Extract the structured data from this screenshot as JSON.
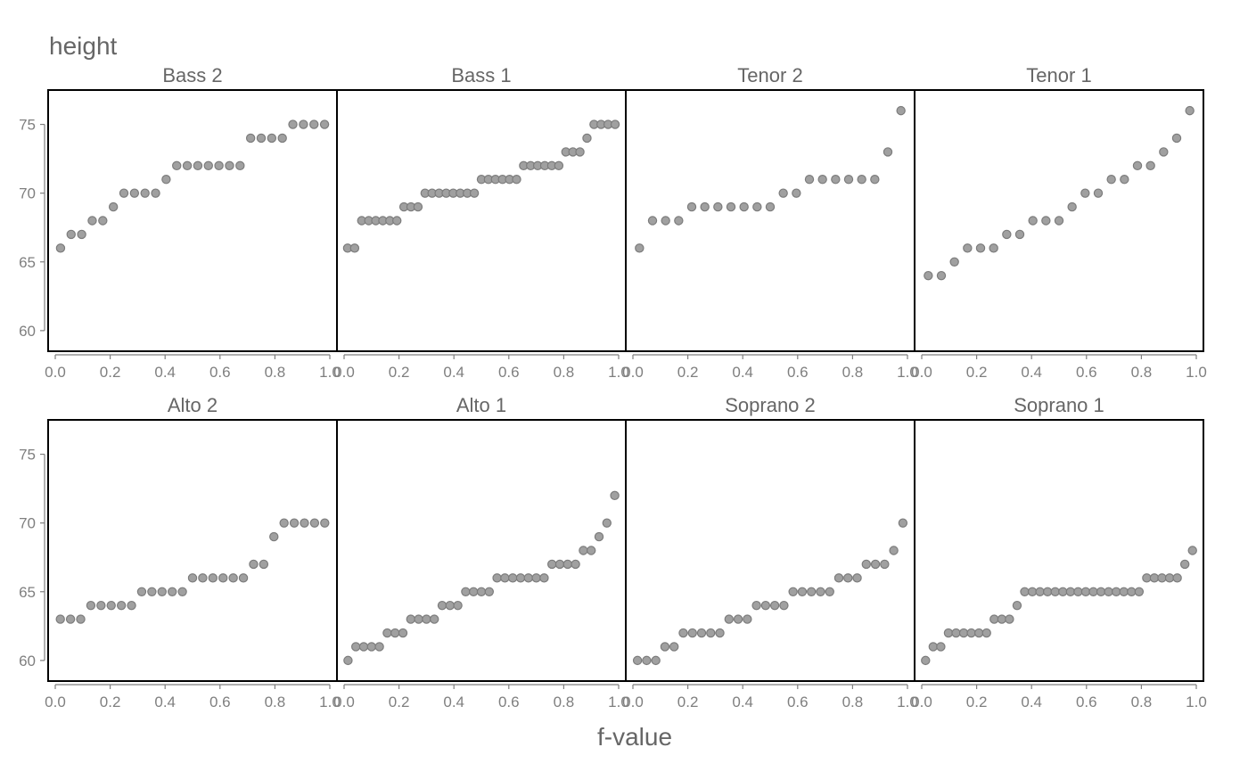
{
  "chart_data": {
    "type": "scatter",
    "ylabel": "height",
    "xlabel": "f-value",
    "xlim": [
      0,
      1
    ],
    "ylim": [
      58.5,
      77.5
    ],
    "yticks": [
      60,
      65,
      70,
      75
    ],
    "xticks": [
      0.0,
      0.2,
      0.4,
      0.6,
      0.8,
      1.0
    ],
    "xtick_labels": [
      "0.0",
      "0.2",
      "0.4",
      "0.6",
      "0.8",
      "1.0"
    ],
    "grid": false,
    "panels": [
      {
        "title": "Bass 2",
        "n": 26,
        "values": [
          66,
          67,
          67,
          68,
          68,
          69,
          70,
          70,
          70,
          70,
          71,
          72,
          72,
          72,
          72,
          72,
          72,
          72,
          74,
          74,
          74,
          74,
          75,
          75,
          75,
          75
        ]
      },
      {
        "title": "Bass 1",
        "n": 39,
        "values": [
          66,
          66,
          68,
          68,
          68,
          68,
          68,
          68,
          69,
          69,
          69,
          70,
          70,
          70,
          70,
          70,
          70,
          70,
          70,
          71,
          71,
          71,
          71,
          71,
          71,
          72,
          72,
          72,
          72,
          72,
          72,
          73,
          73,
          73,
          74,
          75,
          75,
          75,
          75
        ]
      },
      {
        "title": "Tenor 2",
        "n": 21,
        "values": [
          66,
          68,
          68,
          68,
          69,
          69,
          69,
          69,
          69,
          69,
          69,
          70,
          70,
          71,
          71,
          71,
          71,
          71,
          71,
          73,
          76
        ]
      },
      {
        "title": "Tenor 1",
        "n": 21,
        "values": [
          64,
          64,
          65,
          66,
          66,
          66,
          67,
          67,
          68,
          68,
          68,
          69,
          70,
          70,
          71,
          71,
          72,
          72,
          73,
          74,
          76
        ]
      },
      {
        "title": "Alto 2",
        "n": 27,
        "values": [
          63,
          63,
          63,
          64,
          64,
          64,
          64,
          64,
          65,
          65,
          65,
          65,
          65,
          66,
          66,
          66,
          66,
          66,
          66,
          67,
          67,
          69,
          70,
          70,
          70,
          70,
          70
        ]
      },
      {
        "title": "Alto 1",
        "n": 35,
        "values": [
          60,
          61,
          61,
          61,
          61,
          62,
          62,
          62,
          63,
          63,
          63,
          63,
          64,
          64,
          64,
          65,
          65,
          65,
          65,
          66,
          66,
          66,
          66,
          66,
          66,
          66,
          67,
          67,
          67,
          67,
          68,
          68,
          69,
          70,
          72
        ]
      },
      {
        "title": "Soprano 2",
        "n": 30,
        "values": [
          60,
          60,
          60,
          61,
          61,
          62,
          62,
          62,
          62,
          62,
          63,
          63,
          63,
          64,
          64,
          64,
          64,
          65,
          65,
          65,
          65,
          65,
          66,
          66,
          66,
          67,
          67,
          67,
          68,
          70
        ]
      },
      {
        "title": "Soprano 1",
        "n": 36,
        "values": [
          60,
          61,
          61,
          62,
          62,
          62,
          62,
          62,
          62,
          63,
          63,
          63,
          64,
          65,
          65,
          65,
          65,
          65,
          65,
          65,
          65,
          65,
          65,
          65,
          65,
          65,
          65,
          65,
          65,
          66,
          66,
          66,
          66,
          66,
          67,
          68
        ]
      }
    ]
  }
}
